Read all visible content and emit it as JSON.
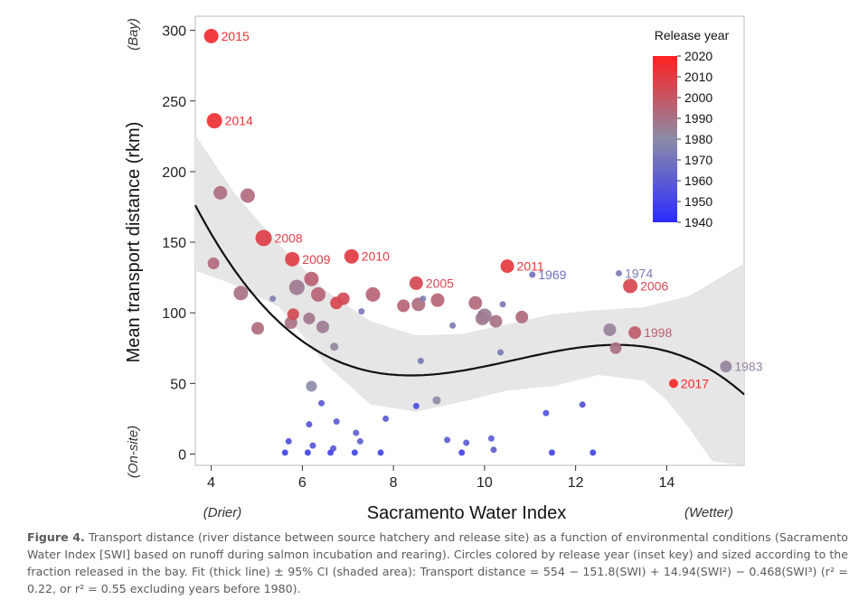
{
  "chart_data": {
    "type": "scatter",
    "xlabel": "Sacramento Water Index",
    "ylabel": "Mean transport distance (rkm)",
    "xlim": [
      3.65,
      15.7
    ],
    "ylim": [
      -8,
      310
    ],
    "x_ticks": [
      4,
      6,
      8,
      10,
      12,
      14
    ],
    "y_ticks": [
      0,
      50,
      100,
      150,
      200,
      250,
      300
    ],
    "x_notes": {
      "left": "(Drier)",
      "right": "(Wetter)"
    },
    "y_notes": {
      "top": "(Bay)",
      "bottom": "(On-site)"
    },
    "legend": {
      "title": "Release year",
      "placement": "top-right",
      "ticks": [
        2020,
        2010,
        2000,
        1990,
        1980,
        1970,
        1960,
        1950,
        1940
      ],
      "range": [
        1940,
        2020
      ],
      "color_low": "#2b2bff",
      "color_mid": "#8c8ca8",
      "color_high": "#ff2020"
    },
    "fit": {
      "coefficients": [
        554,
        -151.8,
        14.94,
        -0.468
      ],
      "ci_upper_x": [
        3.65,
        4.5,
        5.5,
        6.5,
        7.5,
        8.5,
        9.5,
        10.5,
        11.5,
        12.5,
        13.5,
        14.5,
        15.7
      ],
      "ci_upper_y": [
        226,
        185,
        148,
        116,
        94,
        84,
        85,
        92,
        99,
        102,
        104,
        112,
        135
      ],
      "ci_lower_x": [
        3.65,
        4.5,
        5.5,
        6.5,
        7.5,
        8.5,
        9.5,
        10.5,
        11.5,
        12.5,
        13.5,
        14.0,
        14.5,
        15.0,
        15.7
      ],
      "ci_lower_y": [
        130,
        120,
        104,
        64,
        35,
        30,
        37,
        45,
        48,
        56,
        52,
        38,
        18,
        -5,
        -15
      ]
    },
    "points": [
      {
        "x": 4.0,
        "y": 296,
        "year": 2015,
        "size": 8,
        "label": "2015"
      },
      {
        "x": 4.07,
        "y": 236,
        "year": 2014,
        "size": 8.5,
        "label": "2014"
      },
      {
        "x": 4.2,
        "y": 185,
        "year": 1992,
        "size": 7.5,
        "label": ""
      },
      {
        "x": 4.8,
        "y": 183,
        "year": 1992,
        "size": 8,
        "label": ""
      },
      {
        "x": 5.15,
        "y": 153,
        "year": 2008,
        "size": 9,
        "label": "2008"
      },
      {
        "x": 5.78,
        "y": 138,
        "year": 2009,
        "size": 8,
        "label": "2009"
      },
      {
        "x": 4.05,
        "y": 135,
        "year": 1993,
        "size": 6.5,
        "label": ""
      },
      {
        "x": 7.08,
        "y": 140,
        "year": 2010,
        "size": 8,
        "label": "2010"
      },
      {
        "x": 10.5,
        "y": 133,
        "year": 2011,
        "size": 7.5,
        "label": "2011"
      },
      {
        "x": 11.05,
        "y": 127,
        "year": 1969,
        "size": 3.5,
        "label": "1969"
      },
      {
        "x": 12.95,
        "y": 128,
        "year": 1974,
        "size": 3.5,
        "label": "1974"
      },
      {
        "x": 13.2,
        "y": 119,
        "year": 2006,
        "size": 8,
        "label": "2006"
      },
      {
        "x": 8.5,
        "y": 121,
        "year": 2005,
        "size": 7.5,
        "label": "2005"
      },
      {
        "x": 6.2,
        "y": 124,
        "year": 1996,
        "size": 8,
        "label": ""
      },
      {
        "x": 5.88,
        "y": 118,
        "year": 1987,
        "size": 8.5,
        "label": ""
      },
      {
        "x": 6.35,
        "y": 113,
        "year": 1995,
        "size": 8,
        "label": ""
      },
      {
        "x": 4.65,
        "y": 114,
        "year": 1990,
        "size": 8,
        "label": ""
      },
      {
        "x": 7.55,
        "y": 113,
        "year": 1995,
        "size": 8,
        "label": ""
      },
      {
        "x": 6.9,
        "y": 110,
        "year": 2004,
        "size": 7,
        "label": ""
      },
      {
        "x": 6.75,
        "y": 107,
        "year": 2006,
        "size": 7,
        "label": ""
      },
      {
        "x": 5.35,
        "y": 110,
        "year": 1975,
        "size": 3.5,
        "label": ""
      },
      {
        "x": 8.65,
        "y": 110,
        "year": 1976,
        "size": 3.5,
        "label": ""
      },
      {
        "x": 8.97,
        "y": 109,
        "year": 1995,
        "size": 7.5,
        "label": ""
      },
      {
        "x": 8.22,
        "y": 105,
        "year": 1995,
        "size": 7,
        "label": ""
      },
      {
        "x": 8.55,
        "y": 106,
        "year": 1992,
        "size": 7.5,
        "label": ""
      },
      {
        "x": 9.8,
        "y": 107,
        "year": 1993,
        "size": 7.5,
        "label": ""
      },
      {
        "x": 10.4,
        "y": 106,
        "year": 1972,
        "size": 3.5,
        "label": ""
      },
      {
        "x": 7.3,
        "y": 101,
        "year": 1972,
        "size": 3.5,
        "label": ""
      },
      {
        "x": 5.8,
        "y": 99,
        "year": 2004,
        "size": 6.5,
        "label": ""
      },
      {
        "x": 6.15,
        "y": 96,
        "year": 1988,
        "size": 6.5,
        "label": ""
      },
      {
        "x": 10.0,
        "y": 98,
        "year": 1985,
        "size": 8,
        "label": ""
      },
      {
        "x": 9.95,
        "y": 96,
        "year": 1987,
        "size": 7.5,
        "label": ""
      },
      {
        "x": 10.25,
        "y": 94,
        "year": 1990,
        "size": 7,
        "label": ""
      },
      {
        "x": 10.82,
        "y": 97,
        "year": 1993,
        "size": 7,
        "label": ""
      },
      {
        "x": 5.75,
        "y": 93,
        "year": 1990,
        "size": 7,
        "label": ""
      },
      {
        "x": 6.45,
        "y": 90,
        "year": 1986,
        "size": 7,
        "label": ""
      },
      {
        "x": 9.3,
        "y": 91,
        "year": 1974,
        "size": 3.5,
        "label": ""
      },
      {
        "x": 5.02,
        "y": 89,
        "year": 1992,
        "size": 7,
        "label": ""
      },
      {
        "x": 12.75,
        "y": 88,
        "year": 1984,
        "size": 7,
        "label": ""
      },
      {
        "x": 13.3,
        "y": 86,
        "year": 1998,
        "size": 7,
        "label": "1998"
      },
      {
        "x": 6.7,
        "y": 76,
        "year": 1983,
        "size": 4.5,
        "label": ""
      },
      {
        "x": 12.88,
        "y": 75,
        "year": 1990,
        "size": 6.5,
        "label": ""
      },
      {
        "x": 10.35,
        "y": 72,
        "year": 1973,
        "size": 3.5,
        "label": ""
      },
      {
        "x": 15.3,
        "y": 62,
        "year": 1983,
        "size": 6.5,
        "label": "1983"
      },
      {
        "x": 8.6,
        "y": 66,
        "year": 1973,
        "size": 3.5,
        "label": ""
      },
      {
        "x": 14.15,
        "y": 50,
        "year": 2017,
        "size": 5,
        "label": "2017"
      },
      {
        "x": 6.2,
        "y": 48,
        "year": 1980,
        "size": 6,
        "label": ""
      },
      {
        "x": 8.95,
        "y": 38,
        "year": 1980,
        "size": 4.5,
        "label": ""
      },
      {
        "x": 6.42,
        "y": 36,
        "year": 1960,
        "size": 3.5,
        "label": ""
      },
      {
        "x": 8.5,
        "y": 34,
        "year": 1955,
        "size": 3.5,
        "label": ""
      },
      {
        "x": 12.15,
        "y": 35,
        "year": 1957,
        "size": 3.5,
        "label": ""
      },
      {
        "x": 11.35,
        "y": 29,
        "year": 1957,
        "size": 3.5,
        "label": ""
      },
      {
        "x": 7.83,
        "y": 25,
        "year": 1960,
        "size": 3.5,
        "label": ""
      },
      {
        "x": 6.75,
        "y": 23,
        "year": 1960,
        "size": 3.5,
        "label": ""
      },
      {
        "x": 6.15,
        "y": 21,
        "year": 1958,
        "size": 3.5,
        "label": ""
      },
      {
        "x": 7.18,
        "y": 15,
        "year": 1962,
        "size": 3.5,
        "label": ""
      },
      {
        "x": 5.7,
        "y": 9,
        "year": 1955,
        "size": 3.5,
        "label": ""
      },
      {
        "x": 7.27,
        "y": 9,
        "year": 1962,
        "size": 3.5,
        "label": ""
      },
      {
        "x": 9.18,
        "y": 10,
        "year": 1960,
        "size": 3.5,
        "label": ""
      },
      {
        "x": 9.6,
        "y": 8,
        "year": 1960,
        "size": 3.5,
        "label": ""
      },
      {
        "x": 10.15,
        "y": 11,
        "year": 1960,
        "size": 3.5,
        "label": ""
      },
      {
        "x": 6.23,
        "y": 6,
        "year": 1958,
        "size": 3.5,
        "label": ""
      },
      {
        "x": 6.68,
        "y": 4,
        "year": 1960,
        "size": 3.5,
        "label": ""
      },
      {
        "x": 10.2,
        "y": 3,
        "year": 1962,
        "size": 3.5,
        "label": ""
      },
      {
        "x": 5.62,
        "y": 1,
        "year": 1950,
        "size": 3.5,
        "label": ""
      },
      {
        "x": 6.12,
        "y": 1,
        "year": 1950,
        "size": 3.5,
        "label": ""
      },
      {
        "x": 6.62,
        "y": 1,
        "year": 1950,
        "size": 3.5,
        "label": ""
      },
      {
        "x": 7.15,
        "y": 1,
        "year": 1950,
        "size": 3.5,
        "label": ""
      },
      {
        "x": 7.72,
        "y": 1,
        "year": 1950,
        "size": 3.5,
        "label": ""
      },
      {
        "x": 9.5,
        "y": 1,
        "year": 1950,
        "size": 3.5,
        "label": ""
      },
      {
        "x": 11.48,
        "y": 1,
        "year": 1950,
        "size": 3.5,
        "label": ""
      },
      {
        "x": 12.38,
        "y": 1,
        "year": 1950,
        "size": 3.5,
        "label": ""
      }
    ]
  },
  "caption": {
    "label": "Figure 4.",
    "text": " Transport distance (river distance between source hatchery and release site) as a function of environmental conditions (Sacramento Water Index [SWI] based on runoff during salmon incubation and rearing). Circles colored by release year (inset key) and sized according to the fraction released in the bay. Fit (thick line) ± 95% CI (shaded area): Transport distance = 554 − 151.8(SWI) + 14.94(SWI²) − 0.468(SWI³) (r² = 0.22, or r² = 0.55 excluding years before 1980)."
  }
}
